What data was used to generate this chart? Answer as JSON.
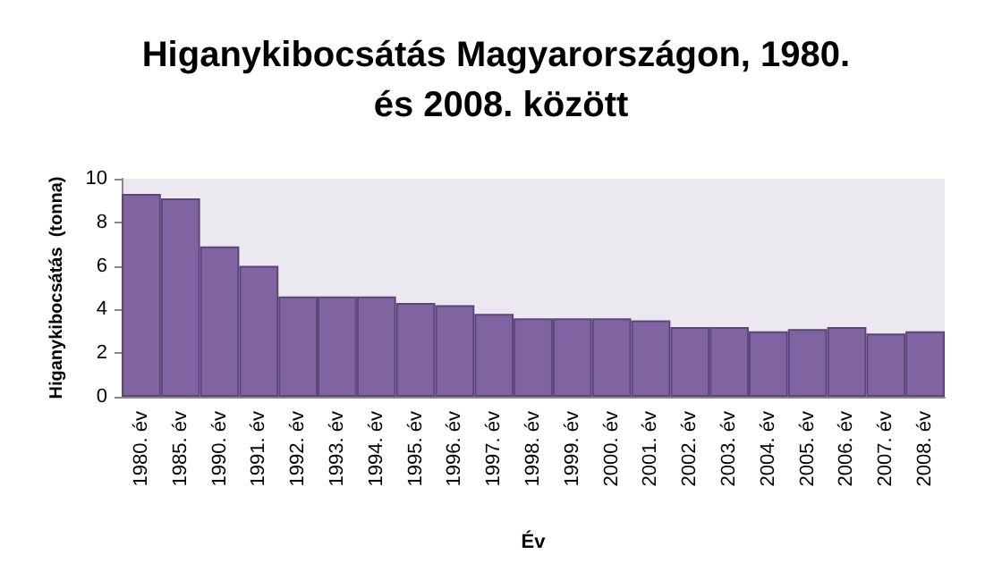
{
  "chart_data": {
    "type": "bar",
    "title": "Higanykibocsátás Magyarországon, 1980. és 2008. között",
    "xlabel": "Év",
    "ylabel": "Higanykibocsátás  (tonna)",
    "categories": [
      "1980. év",
      "1985. év",
      "1990. év",
      "1991. év",
      "1992. év",
      "1993. év",
      "1994. év",
      "1995. év",
      "1996. év",
      "1997. év",
      "1998. év",
      "1999. év",
      "2000. év",
      "2001. év",
      "2002. év",
      "2003. év",
      "2004. év",
      "2005. év",
      "2006. év",
      "2007. év",
      "2008. év"
    ],
    "values": [
      9.3,
      9.1,
      6.9,
      6.0,
      4.6,
      4.6,
      4.6,
      4.3,
      4.2,
      3.8,
      3.6,
      3.6,
      3.6,
      3.5,
      3.2,
      3.2,
      3.0,
      3.1,
      3.2,
      2.9,
      3.0
    ],
    "color": "#8064a2",
    "ylim": [
      0,
      10
    ],
    "yticks": [
      0,
      2,
      4,
      6,
      8,
      10
    ],
    "grid": false
  }
}
